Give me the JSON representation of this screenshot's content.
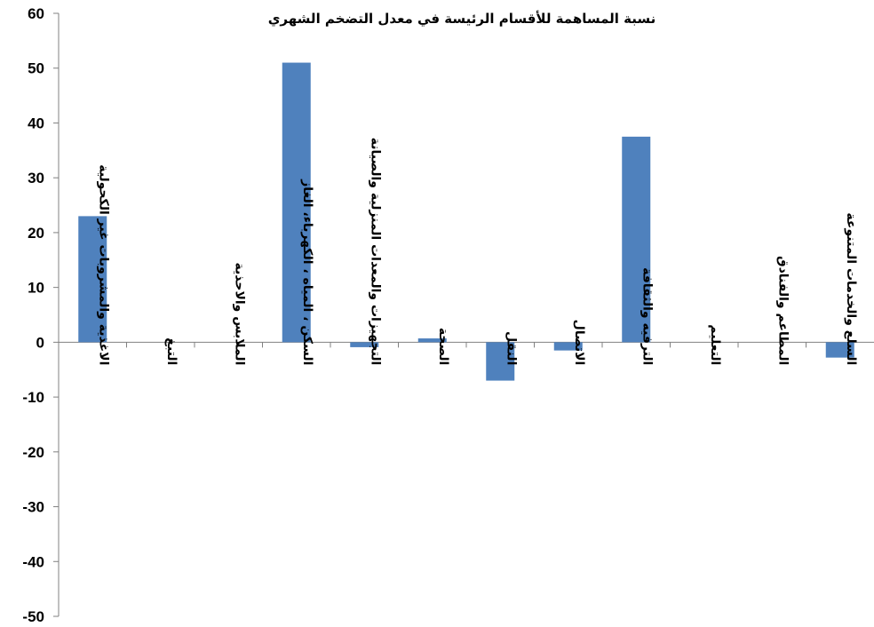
{
  "chart_data": {
    "type": "bar",
    "title": "نسبة المساهمة للأقسام الرئيسة في معدل التضخم الشهري",
    "xlabel": "",
    "ylabel": "",
    "ylim": [
      -50,
      60
    ],
    "yticks": [
      60,
      50,
      40,
      30,
      20,
      10,
      0,
      -10,
      -20,
      -30,
      -40,
      -50
    ],
    "grid": false,
    "legend": "none",
    "bar_color": "#4F81BD",
    "categories": [
      "الاغذية والمشروبات غير الكحولية",
      "التبغ",
      "الملابس والاحذية",
      "السكن ، المياه ، الكهرباء، الغاز",
      "التجهيزات والمعدات المنزلية والصيانة",
      "الصحة",
      "النقل",
      "الاتصال",
      "الترفيه والثقافة",
      "التعليم",
      "المطاعم والفنادق",
      "السلع والخدمات المتنوعة"
    ],
    "values": [
      23,
      0,
      0,
      51,
      -0.9,
      0.7,
      -7,
      -1.5,
      37.5,
      0,
      0,
      -2.8
    ]
  }
}
